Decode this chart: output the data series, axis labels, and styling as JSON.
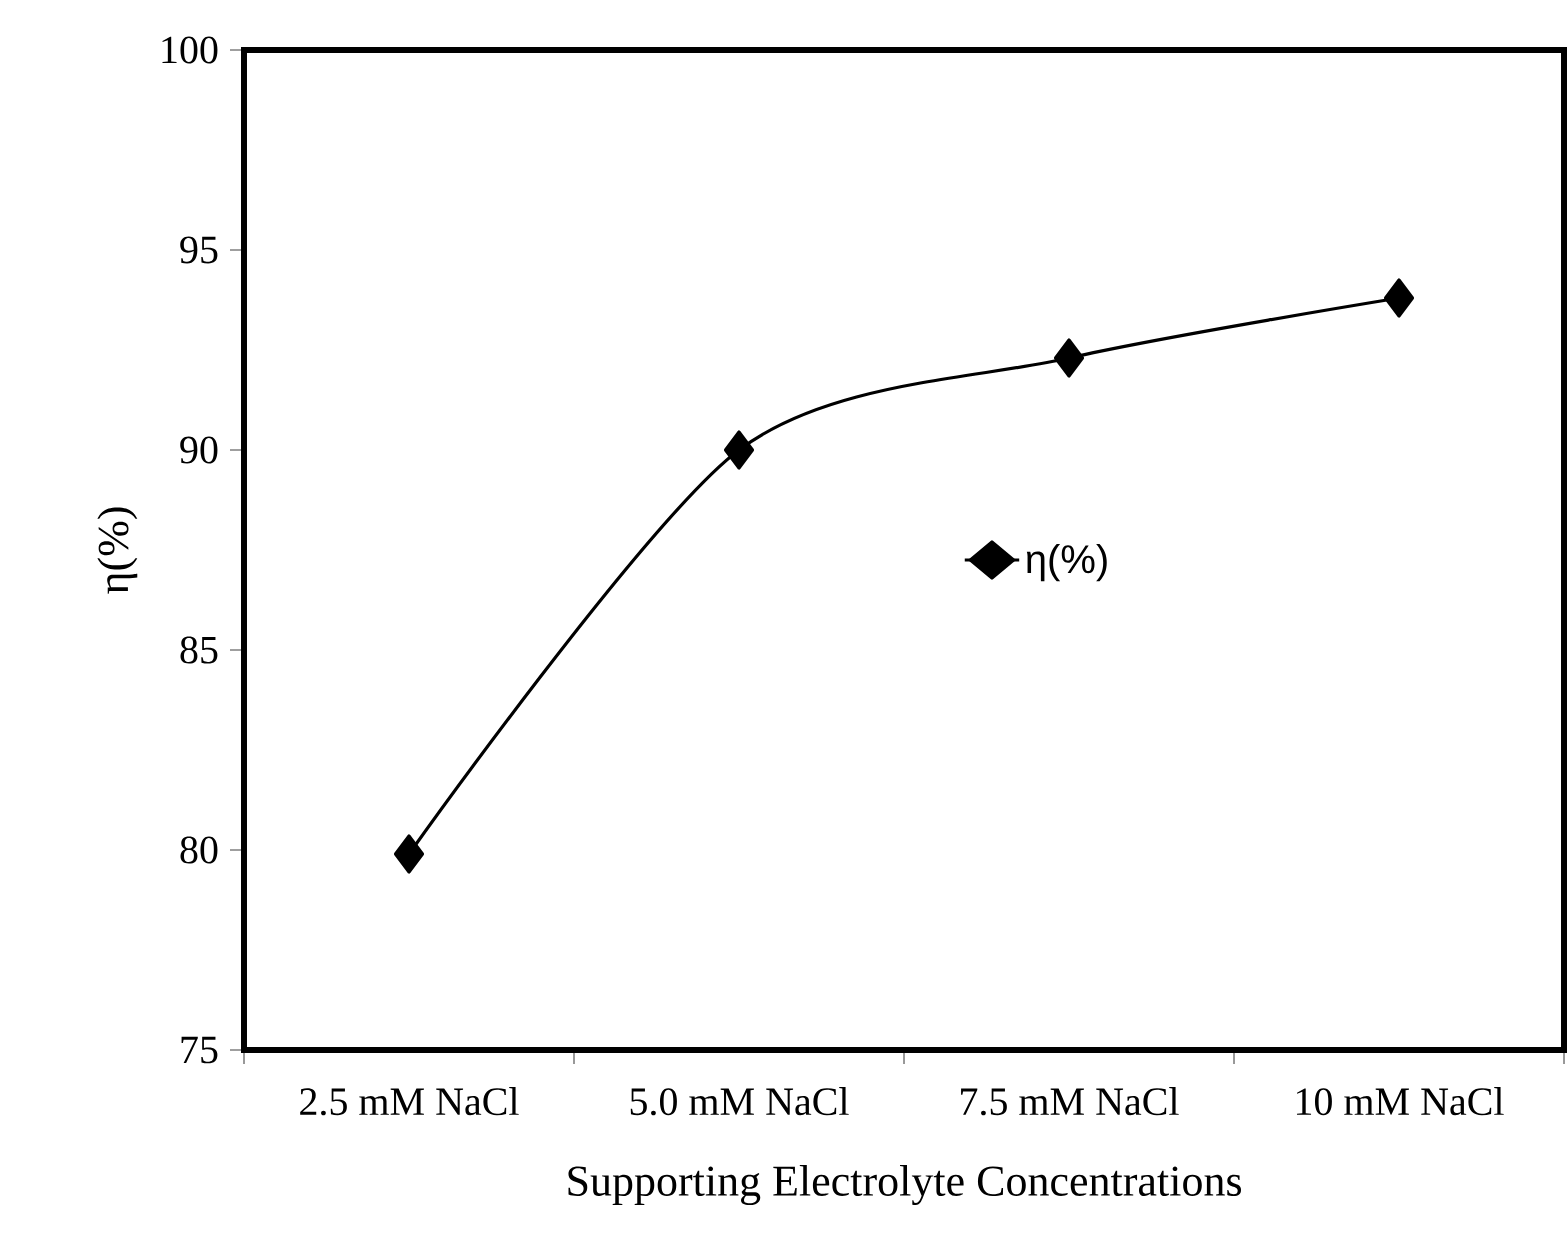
{
  "chart_data": {
    "type": "line",
    "xlabel": "Supporting Electrolyte Concentrations",
    "ylabel": "η(%)",
    "categories": [
      "2.5 mM NaCl",
      "5.0 mM NaCl",
      "7.5 mM NaCl",
      "10 mM NaCl"
    ],
    "series": [
      {
        "name": "η(%)",
        "color": "#000000",
        "values": [
          79.9,
          90.0,
          92.3,
          93.8
        ]
      }
    ],
    "ylim": [
      75,
      100
    ],
    "yticks": [
      75,
      80,
      85,
      90,
      95,
      100
    ],
    "legend": "center",
    "marker": "diamond",
    "line_style": "solid"
  }
}
